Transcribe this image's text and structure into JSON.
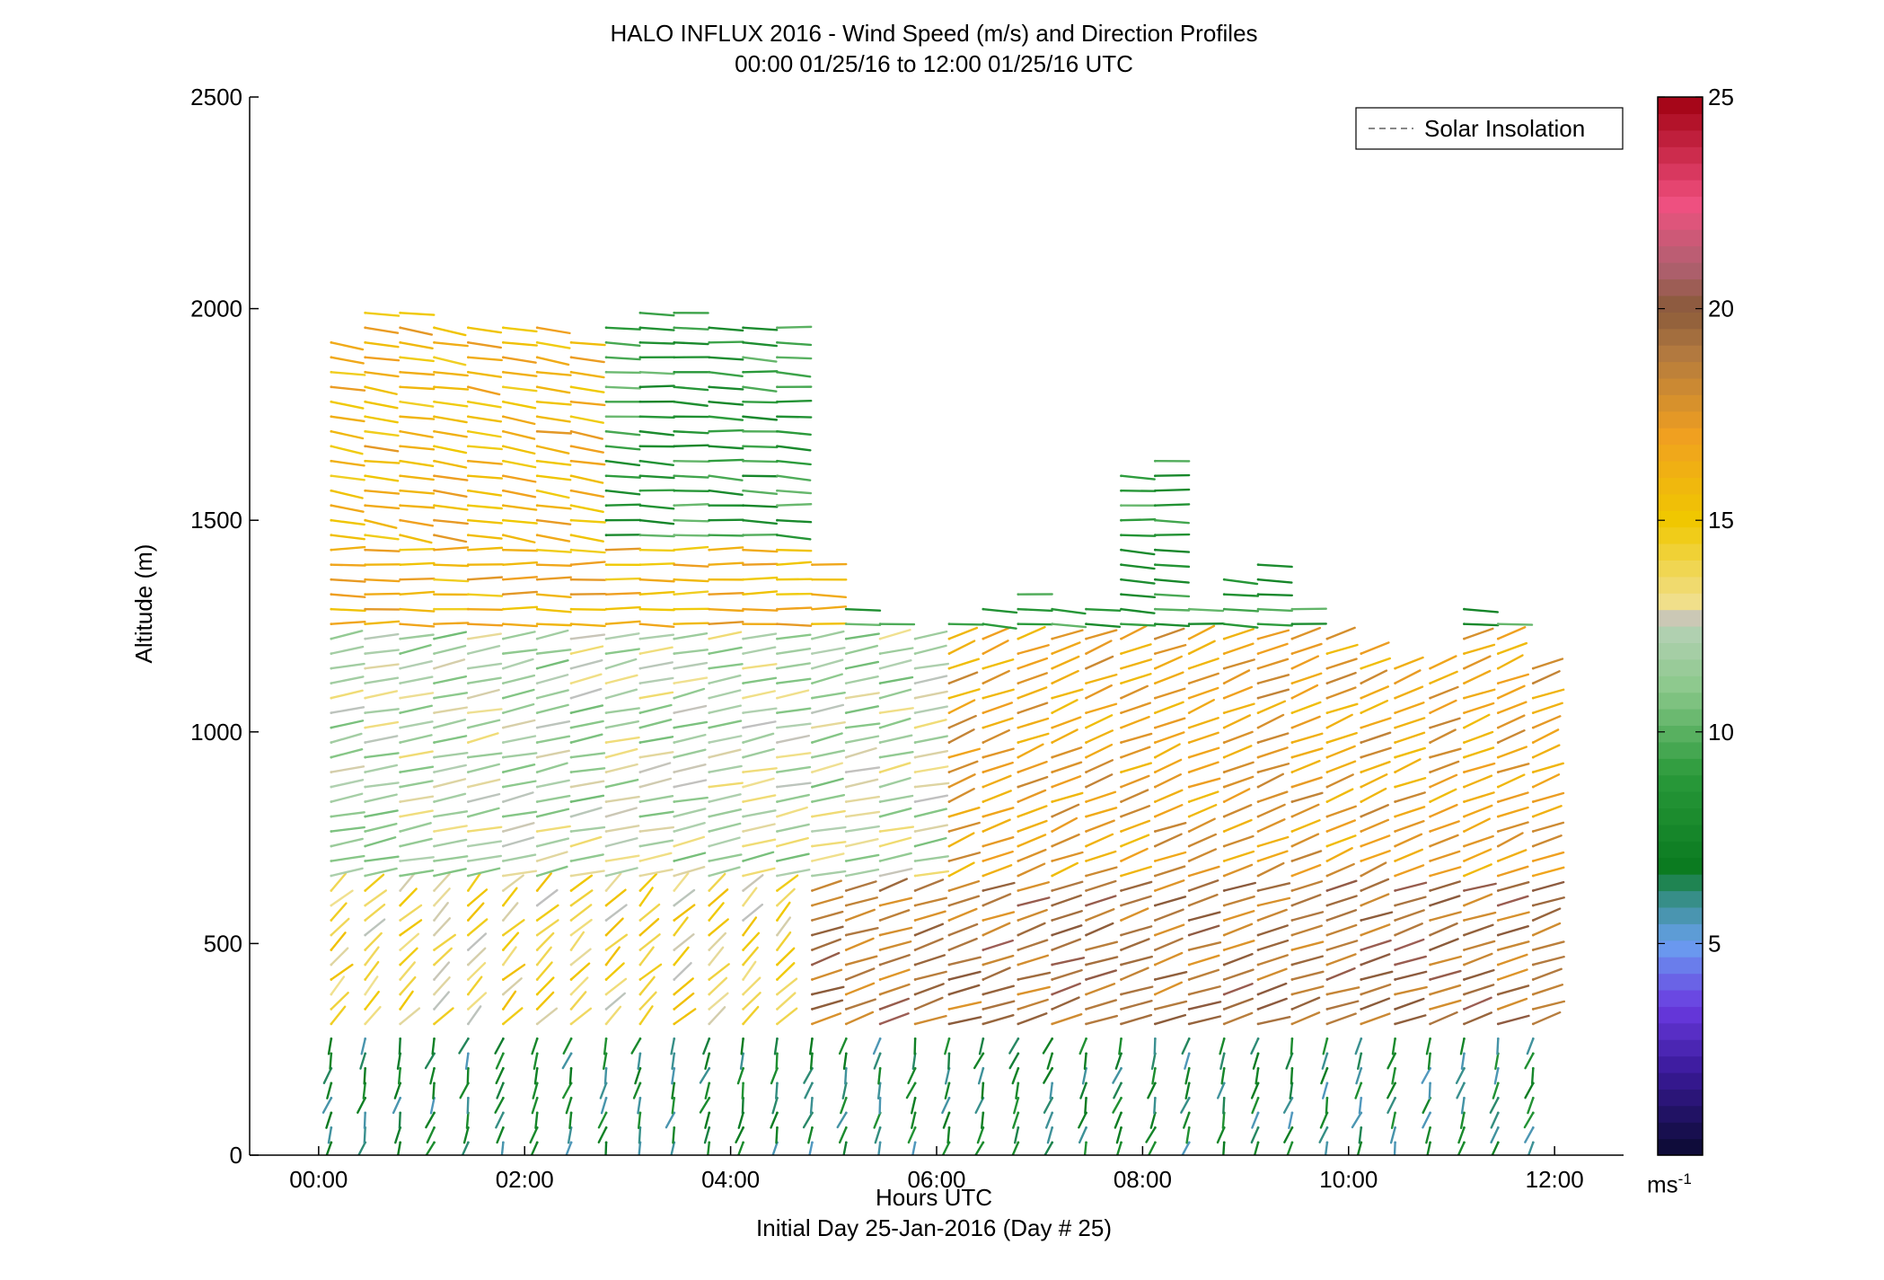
{
  "chart_data": {
    "type": "wind-barb profile",
    "title": "HALO INFLUX 2016 - Wind Speed (m/s) and Direction Profiles",
    "subtitle": "00:00 01/25/16 to 12:00 01/25/16  UTC",
    "xlabel": "Hours UTC",
    "xsublabel": "Initial Day 25-Jan-2016 (Day # 25)",
    "ylabel": "Altitude (m)",
    "xlim": [
      -0.67,
      12.67
    ],
    "ylim": [
      0,
      2500
    ],
    "x_ticks": [
      0,
      2,
      4,
      6,
      8,
      10,
      12
    ],
    "x_tick_labels": [
      "00:00",
      "02:00",
      "04:00",
      "06:00",
      "08:00",
      "10:00",
      "12:00"
    ],
    "y_ticks": [
      0,
      500,
      1000,
      1500,
      2000,
      2500
    ],
    "y_tick_labels": [
      "0",
      "500",
      "1000",
      "1500",
      "2000",
      "2500"
    ],
    "legend": {
      "entries": [
        "Solar Insolation"
      ],
      "placement": "top-right",
      "line_color": "#888888",
      "line_style": "dashed"
    },
    "colorbar": {
      "range": [
        0,
        25
      ],
      "ticks": [
        5,
        10,
        15,
        20,
        25
      ],
      "tick_labels": [
        "5",
        "10",
        "15",
        "20",
        "25"
      ],
      "unit": "ms",
      "unit_exponent": "-1",
      "stops": [
        {
          "v": 0,
          "c": "#0a0a30"
        },
        {
          "v": 2,
          "c": "#3a1a9a"
        },
        {
          "v": 3.5,
          "c": "#6a3ae0"
        },
        {
          "v": 5,
          "c": "#6aa0f0"
        },
        {
          "v": 6,
          "c": "#3a9090"
        },
        {
          "v": 6.8,
          "c": "#0a7a20"
        },
        {
          "v": 9,
          "c": "#2a9a3a"
        },
        {
          "v": 11,
          "c": "#8ac88a"
        },
        {
          "v": 12.3,
          "c": "#b0d0b0"
        },
        {
          "v": 12.6,
          "c": "#c0c0c0"
        },
        {
          "v": 13,
          "c": "#f0e090"
        },
        {
          "v": 15,
          "c": "#f0c800"
        },
        {
          "v": 17,
          "c": "#f0a020"
        },
        {
          "v": 19,
          "c": "#b07840"
        },
        {
          "v": 20,
          "c": "#8a5a3a"
        },
        {
          "v": 21,
          "c": "#b06070"
        },
        {
          "v": 22.5,
          "c": "#f05080"
        },
        {
          "v": 25,
          "c": "#a00010"
        }
      ]
    },
    "profiles_approx": {
      "times_hours": [
        0.0,
        0.33,
        0.67,
        1.0,
        1.33,
        1.67,
        2.0,
        2.33,
        2.67,
        3.0,
        3.33,
        3.67,
        4.0,
        4.33,
        4.67,
        5.0,
        5.33,
        5.67,
        6.0,
        6.33,
        6.67,
        7.0,
        7.33,
        7.67,
        8.0,
        8.33,
        8.67,
        9.0,
        9.33,
        9.67,
        10.0,
        10.33,
        10.67,
        11.0,
        11.33,
        11.67
      ],
      "top_altitude_m": [
        1930,
        2000,
        2010,
        1970,
        1960,
        1960,
        1960,
        1950,
        1960,
        2010,
        1990,
        1960,
        1970,
        1960,
        1400,
        1320,
        1280,
        1250,
        1270,
        1300,
        1350,
        1320,
        1300,
        1620,
        1650,
        1300,
        1390,
        1400,
        1300,
        1250,
        1200,
        1150,
        1150,
        1320,
        1280,
        1150
      ],
      "speed_regimes": [
        {
          "alt_range_m": [
            0,
            300
          ],
          "time_range_h": [
            0,
            12
          ],
          "speed_ms": 7,
          "direction_deg": 10
        },
        {
          "alt_range_m": [
            300,
            650
          ],
          "time_range_h": [
            0,
            4.5
          ],
          "speed_ms": 14,
          "direction_deg": 210
        },
        {
          "alt_range_m": [
            300,
            650
          ],
          "time_range_h": [
            4.5,
            12
          ],
          "speed_ms": 19,
          "direction_deg": 240
        },
        {
          "alt_range_m": [
            650,
            1250
          ],
          "time_range_h": [
            0,
            6
          ],
          "speed_ms": 12,
          "direction_deg": 250
        },
        {
          "alt_range_m": [
            650,
            1250
          ],
          "time_range_h": [
            6,
            12
          ],
          "speed_ms": 17,
          "direction_deg": 235
        },
        {
          "alt_range_m": [
            1250,
            1450
          ],
          "time_range_h": [
            0,
            5
          ],
          "speed_ms": 16,
          "direction_deg": 270
        },
        {
          "alt_range_m": [
            1450,
            2000
          ],
          "time_range_h": [
            0,
            2.5
          ],
          "speed_ms": 16,
          "direction_deg": 285
        },
        {
          "alt_range_m": [
            1450,
            2000
          ],
          "time_range_h": [
            2.5,
            4.5
          ],
          "speed_ms": 9,
          "direction_deg": 275
        }
      ]
    }
  }
}
